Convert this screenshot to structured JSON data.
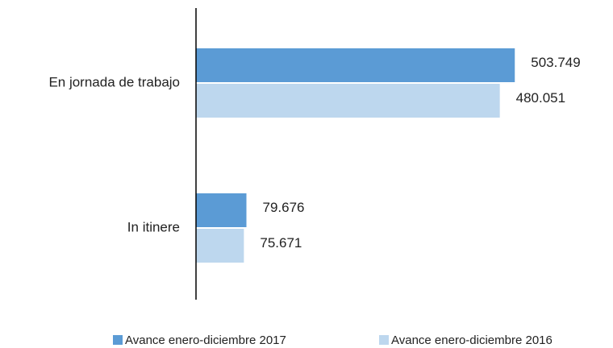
{
  "chart_data": {
    "type": "bar",
    "orientation": "horizontal",
    "categories": [
      "En jornada de trabajo",
      "In itinere"
    ],
    "series": [
      {
        "name": "Avance enero-diciembre 2017",
        "color": "#5b9bd5",
        "values": [
          503749,
          79676
        ],
        "value_labels": [
          "503.749",
          "79.676"
        ]
      },
      {
        "name": "Avance enero-diciembre 2016",
        "color": "#bdd7ee",
        "values": [
          480051,
          75671
        ],
        "value_labels": [
          "480.051",
          "75.671"
        ]
      }
    ],
    "xlim": [
      0,
      650000
    ]
  }
}
